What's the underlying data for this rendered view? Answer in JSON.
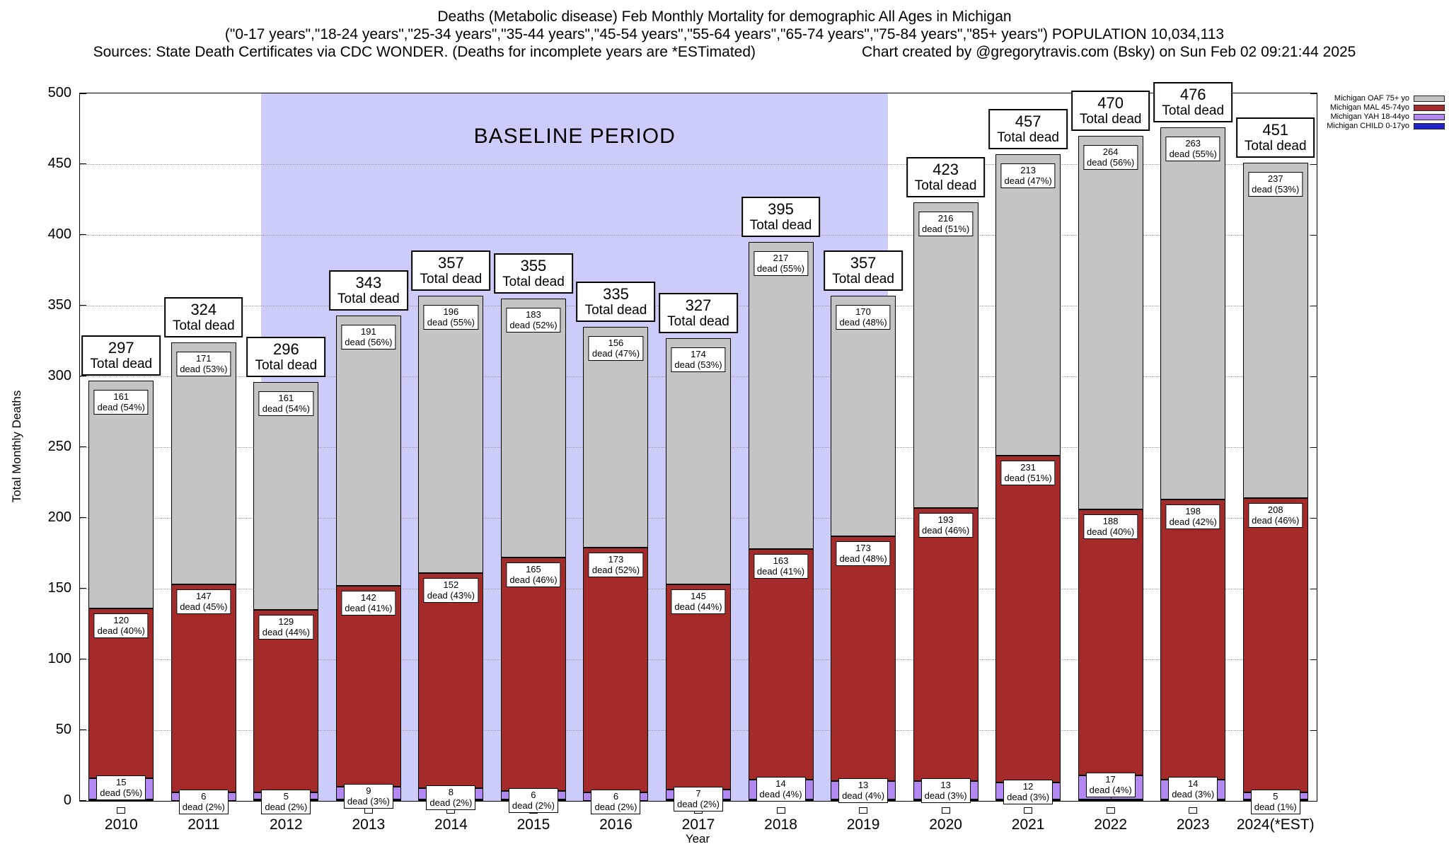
{
  "header": {
    "title_line1": "Deaths (Metabolic disease) Feb Monthly Mortality for demographic All Ages in Michigan",
    "title_line2": "(\"0-17 years\",\"18-24 years\",\"25-34 years\",\"35-44 years\",\"45-54 years\",\"55-64 years\",\"65-74 years\",\"75-84 years\",\"85+ years\") POPULATION 10,034,113",
    "sources": "Sources: State Death Certificates via CDC WONDER. (Deaths for incomplete years are *ESTimated)",
    "credit": "Chart created by @gregorytravis.com (Bsky) on Sun Feb 02 09:21:44 2025"
  },
  "chart_data": {
    "type": "bar",
    "stacked": true,
    "title": "Deaths (Metabolic disease) Feb Monthly Mortality for demographic All Ages in Michigan",
    "xlabel": "Year",
    "ylabel": "Total Monthly Deaths",
    "ylim": [
      0,
      500
    ],
    "ytick_step": 50,
    "grid": "horizontal-dotted",
    "legend_position": "top-right-outside",
    "total_label": "Total dead",
    "baseline_region": {
      "label": "BASELINE PERIOD",
      "start_year": 2012,
      "end_year": 2019,
      "color": "#ccccfa"
    },
    "categories": [
      "2010",
      "2011",
      "2012",
      "2013",
      "2014",
      "2015",
      "2016",
      "2017",
      "2018",
      "2019",
      "2020",
      "2021",
      "2022",
      "2023",
      "2024(*EST)"
    ],
    "totals": [
      297,
      324,
      296,
      343,
      357,
      355,
      335,
      327,
      395,
      357,
      423,
      457,
      470,
      476,
      451
    ],
    "series": [
      {
        "key": "oaf",
        "name": "Michigan OAF 75+ yo",
        "color": "#c4c4c4",
        "values": [
          161,
          171,
          161,
          191,
          196,
          183,
          156,
          174,
          217,
          170,
          216,
          213,
          264,
          263,
          237
        ],
        "pcts": [
          54,
          53,
          54,
          56,
          55,
          52,
          47,
          53,
          55,
          48,
          51,
          47,
          56,
          55,
          53
        ]
      },
      {
        "key": "mal",
        "name": "Michigan MAL 45-74yo",
        "color": "#a52a2a",
        "values": [
          120,
          147,
          129,
          142,
          152,
          165,
          173,
          145,
          163,
          173,
          193,
          231,
          188,
          198,
          208
        ],
        "pcts": [
          40,
          45,
          44,
          41,
          43,
          46,
          52,
          44,
          41,
          48,
          46,
          51,
          40,
          42,
          46
        ]
      },
      {
        "key": "yah",
        "name": "Michigan YAH 18-44yo",
        "color": "#b488f2",
        "values": [
          15,
          6,
          5,
          9,
          8,
          6,
          6,
          7,
          14,
          13,
          13,
          12,
          17,
          14,
          5
        ],
        "pcts": [
          5,
          2,
          2,
          3,
          2,
          2,
          2,
          2,
          4,
          4,
          3,
          3,
          4,
          3,
          1
        ]
      },
      {
        "key": "child",
        "name": "Michigan CHILD 0-17yo",
        "color": "#2222cc",
        "values": [
          1,
          0,
          1,
          1,
          1,
          1,
          0,
          1,
          1,
          1,
          1,
          1,
          1,
          1,
          1
        ]
      }
    ]
  }
}
